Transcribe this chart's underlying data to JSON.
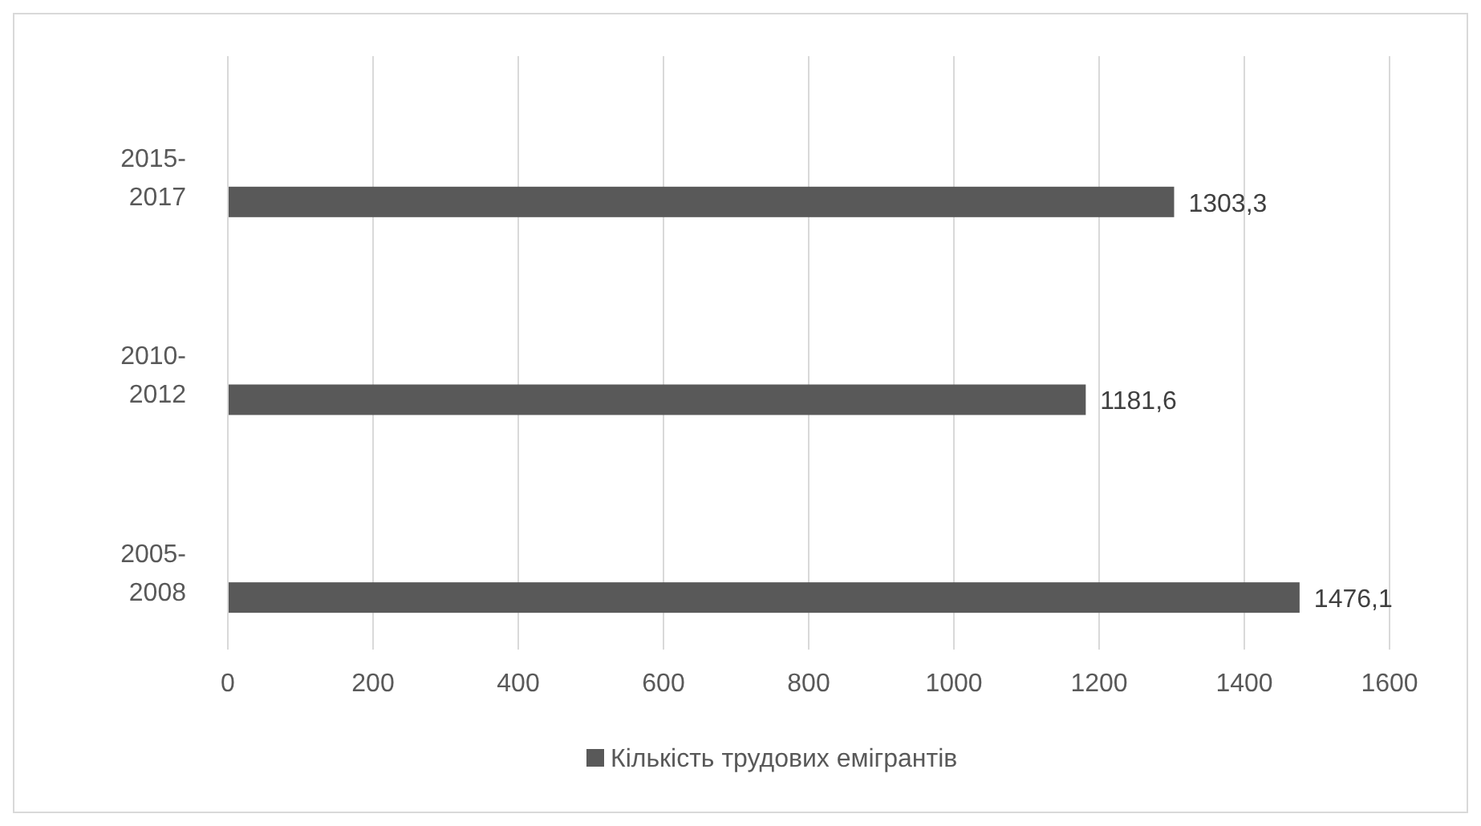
{
  "chart_data": {
    "type": "bar",
    "orientation": "horizontal",
    "categories": [
      "2015-2017",
      "2010-2012",
      "2005-2008"
    ],
    "series": [
      {
        "name": "Кількість трудових емігрантів",
        "color": "#595959",
        "values": [
          1303.3,
          1181.6,
          1476.1
        ],
        "value_labels": [
          "1303,3",
          "1181,6",
          "1476,1"
        ]
      }
    ],
    "xlim": [
      0,
      1600
    ],
    "xticks": [
      0,
      200,
      400,
      600,
      800,
      1000,
      1200,
      1400,
      1600
    ],
    "grid": "x",
    "legend": "bottom"
  }
}
